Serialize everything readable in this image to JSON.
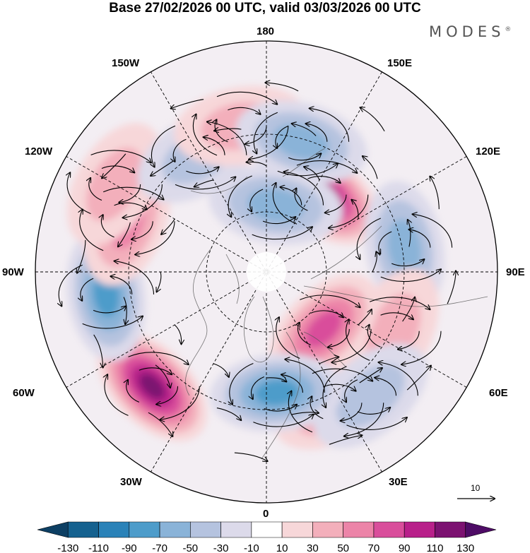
{
  "title": "Base 27/02/2026 00 UTC, valid 03/03/2026 00 UTC",
  "brand": "MODES",
  "brand_mark": "®",
  "longitude_labels": {
    "deg180": "180",
    "w150": "150W",
    "e150": "150E",
    "w120": "120W",
    "e120": "120E",
    "w90": "90W",
    "e90": "90E",
    "w60": "60W",
    "e60": "60E",
    "w30": "30W",
    "e30": "30E",
    "deg0": "0"
  },
  "reference_vector": {
    "label": "10"
  },
  "colorbar": {
    "ticks": [
      "-130",
      "-110",
      "-90",
      "-70",
      "-50",
      "-30",
      "-10",
      "10",
      "30",
      "50",
      "70",
      "90",
      "110",
      "130"
    ],
    "colors": [
      "#0d3f63",
      "#15618f",
      "#2a82b8",
      "#4d9cca",
      "#8ab3d8",
      "#b5c3df",
      "#dcdaea",
      "#ffffff",
      "#f7d7d9",
      "#f3afbb",
      "#ec84a8",
      "#d94e9b",
      "#b8208a",
      "#7c1271",
      "#4e0c66"
    ]
  },
  "chart_data": {
    "type": "heatmap",
    "projection": "north-polar-stereographic",
    "title": "Base 27/02/2026 00 UTC, valid 03/03/2026 00 UTC",
    "field_units_range": [
      -130,
      130
    ],
    "anomaly_centers": [
      {
        "lon": 145,
        "lat": 55,
        "value": 120
      },
      {
        "lon": 100,
        "lat": 38,
        "value": -55
      },
      {
        "lon": 65,
        "lat": 38,
        "value": 45
      },
      {
        "lon": 45,
        "lat": 60,
        "value": 70
      },
      {
        "lon": 28,
        "lat": 35,
        "value": 60
      },
      {
        "lon": 40,
        "lat": 30,
        "value": -45
      },
      {
        "lon": 5,
        "lat": 45,
        "value": -75
      },
      {
        "lon": -45,
        "lat": 30,
        "value": 110
      },
      {
        "lon": -82,
        "lat": 30,
        "value": -70
      },
      {
        "lon": -110,
        "lat": 35,
        "value": 55
      },
      {
        "lon": -120,
        "lat": 25,
        "value": 45
      },
      {
        "lon": -150,
        "lat": 40,
        "value": -40
      },
      {
        "lon": -170,
        "lat": 35,
        "value": 45
      },
      {
        "lon": 165,
        "lat": 40,
        "value": -50
      },
      {
        "lon": 172,
        "lat": 65,
        "value": -50
      }
    ]
  }
}
